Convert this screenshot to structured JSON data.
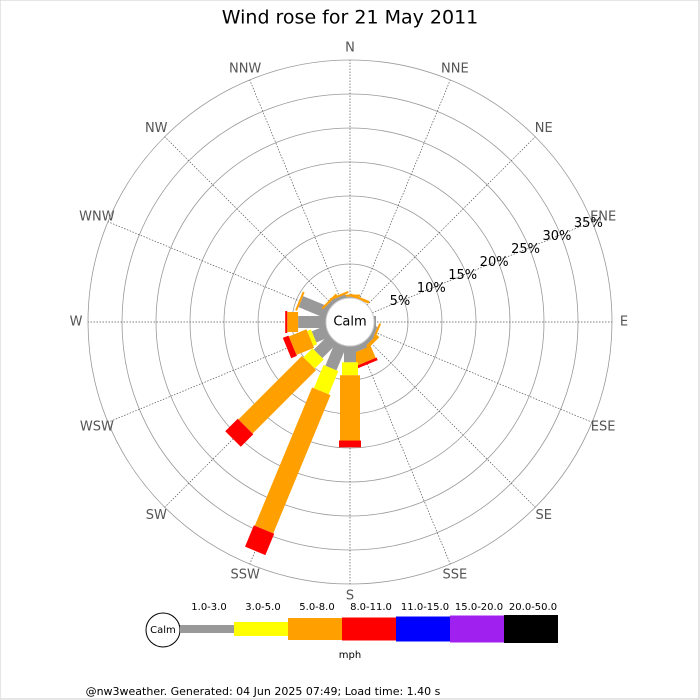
{
  "chart_data": {
    "type": "windrose",
    "title": "Wind rose for 21 May 2011",
    "directions": [
      "N",
      "NNE",
      "NE",
      "ENE",
      "E",
      "ESE",
      "SE",
      "SSE",
      "S",
      "SSW",
      "SW",
      "WSW",
      "W",
      "WNW",
      "NW",
      "NNW"
    ],
    "rlim": [
      0,
      35
    ],
    "rticks": [
      {
        "value": 5,
        "label": "5%"
      },
      {
        "value": 10,
        "label": "10%"
      },
      {
        "value": 15,
        "label": "15%"
      },
      {
        "value": 20,
        "label": "20%"
      },
      {
        "value": 25,
        "label": "25%"
      },
      {
        "value": 30,
        "label": "30%"
      },
      {
        "value": 35,
        "label": "35%"
      }
    ],
    "calm_label": "Calm",
    "unit": "mph",
    "series": [
      {
        "name": "1.0-3.0",
        "color": "#999999",
        "values": [
          0.2,
          0,
          0,
          0,
          0.3,
          0.5,
          0.6,
          0.9,
          2.4,
          3.8,
          3.1,
          2.2,
          4.1,
          4.3,
          0.6,
          0.5
        ]
      },
      {
        "name": "3.0-5.0",
        "color": "#ffff00",
        "values": [
          0,
          0,
          0,
          0,
          0,
          0,
          0,
          0,
          1.9,
          3.7,
          1.9,
          0.6,
          0,
          0,
          0,
          0
        ]
      },
      {
        "name": "5.0-8.0",
        "color": "#ffa000",
        "values": [
          0.3,
          0.4,
          0,
          0,
          0,
          0.3,
          0.5,
          1.9,
          9.6,
          22,
          13.2,
          2.8,
          1.6,
          0.3,
          0.3,
          0.3
        ]
      },
      {
        "name": "8.0-11.0",
        "color": "#ff0000",
        "values": [
          0,
          0,
          0,
          0,
          0,
          0,
          0,
          0.4,
          1.0,
          3.4,
          2.6,
          0.9,
          0.3,
          0,
          0,
          0
        ]
      },
      {
        "name": "11.0-15.0",
        "color": "#0000ff",
        "values": [
          0,
          0,
          0,
          0,
          0,
          0,
          0,
          0,
          0,
          0,
          0,
          0,
          0,
          0,
          0,
          0
        ]
      },
      {
        "name": "15.0-20.0",
        "color": "#a020f0",
        "values": [
          0,
          0,
          0,
          0,
          0,
          0,
          0,
          0,
          0,
          0,
          0,
          0,
          0,
          0,
          0,
          0
        ]
      },
      {
        "name": "20.0-50.0",
        "color": "#000000",
        "values": [
          0,
          0,
          0,
          0,
          0,
          0,
          0,
          0,
          0,
          0,
          0,
          0,
          0,
          0,
          0,
          0
        ]
      }
    ],
    "footer": "@nw3weather. Generated: 04 Jun 2025 07:49; Load time: 1.40 s"
  }
}
